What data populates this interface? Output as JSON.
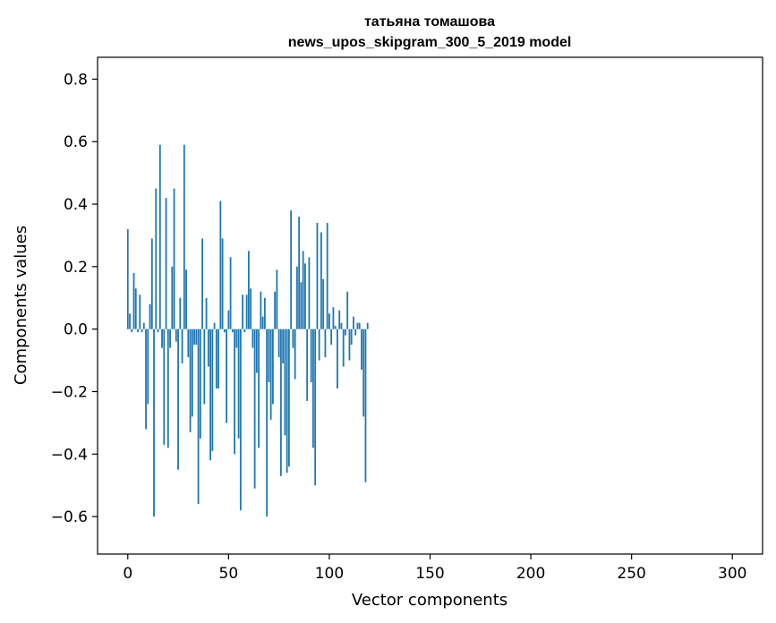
{
  "chart_data": {
    "type": "bar",
    "title": "татьяна томашова",
    "subtitle": "news_upos_skipgram_300_5_2019 model",
    "xlabel": "Vector components",
    "ylabel": "Components values",
    "xlim": [
      -15,
      315
    ],
    "ylim": [
      -0.72,
      0.87
    ],
    "x_ticks": [
      0,
      50,
      100,
      150,
      200,
      250,
      300
    ],
    "y_ticks": [
      -0.6,
      -0.4,
      -0.2,
      0.0,
      0.2,
      0.4,
      0.6,
      0.8
    ],
    "x_tick_labels": [
      "0",
      "50",
      "100",
      "150",
      "200",
      "250",
      "300"
    ],
    "y_tick_labels": [
      "−0.6",
      "−0.4",
      "−0.2",
      "0.0",
      "0.2",
      "0.4",
      "0.6",
      "0.8"
    ],
    "bar_color": "#1f77b4",
    "values": [
      0.32,
      0.05,
      -0.01,
      0.18,
      0.13,
      -0.01,
      0.11,
      -0.01,
      0.02,
      -0.32,
      -0.24,
      0.08,
      0.29,
      -0.6,
      0.45,
      -0.01,
      0.59,
      -0.06,
      -0.37,
      0.42,
      -0.38,
      -0.06,
      0.2,
      0.45,
      -0.04,
      -0.45,
      0.1,
      -0.11,
      0.59,
      0.19,
      -0.09,
      -0.33,
      -0.28,
      -0.05,
      -0.05,
      -0.56,
      -0.35,
      0.29,
      -0.24,
      0.1,
      -0.12,
      -0.42,
      -0.39,
      0.02,
      -0.19,
      -0.19,
      0.41,
      0.29,
      -0.01,
      -0.3,
      0.06,
      0.23,
      -0.01,
      -0.4,
      -0.06,
      -0.35,
      -0.58,
      0.11,
      -0.01,
      0.11,
      0.25,
      0.13,
      -0.06,
      -0.51,
      -0.14,
      -0.38,
      0.12,
      0.04,
      0.1,
      -0.6,
      -0.17,
      -0.29,
      -0.24,
      0.12,
      0.19,
      -0.09,
      -0.47,
      -0.11,
      -0.34,
      -0.46,
      -0.44,
      0.38,
      -0.06,
      -0.16,
      0.2,
      0.36,
      0.15,
      0.25,
      0.21,
      -0.23,
      0.23,
      -0.17,
      -0.38,
      -0.5,
      0.34,
      -0.1,
      0.31,
      0.16,
      -0.09,
      0.34,
      0.05,
      -0.05,
      0.07,
      0.01,
      -0.19,
      0.06,
      0.02,
      -0.12,
      -0.02,
      0.12,
      -0.1,
      -0.05,
      0.04,
      -0.02,
      0.02,
      0.02,
      -0.13,
      -0.28,
      -0.49,
      0.02
    ]
  }
}
